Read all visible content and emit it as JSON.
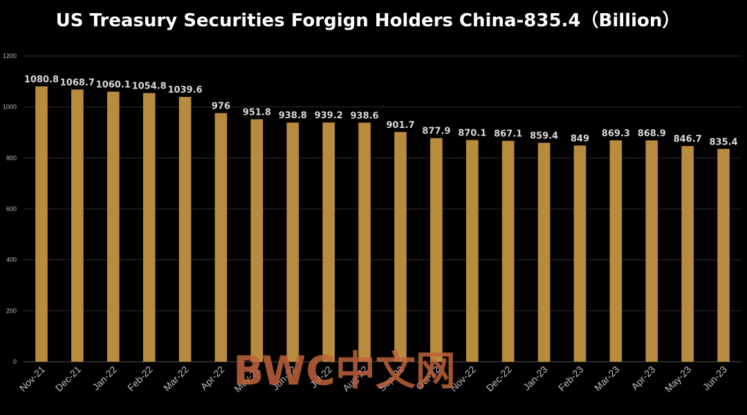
{
  "colors": {
    "background": "#000000",
    "bar": "#B98B3D",
    "grid": "#2E2E2E",
    "axis_text": "#BFBFBF",
    "data_label": "#D9D9D9",
    "title": "#FFFFFF",
    "watermark": "#C0623A"
  },
  "watermark": "BWC中文网",
  "chart_data": {
    "type": "bar",
    "title": "US Treasury Securities Forgign Holders China-835.4（Billion）",
    "xlabel": "",
    "ylabel": "",
    "ylim": [
      0,
      1200
    ],
    "yticks": [
      "0",
      "200",
      "400",
      "600",
      "800",
      "1000",
      "1200"
    ],
    "grid": true,
    "legend": "none",
    "categories": [
      "Nov-21",
      "Dec-21",
      "Jan-22",
      "Feb-22",
      "Mar-22",
      "Apr-22",
      "May-22",
      "Jun-22",
      "Jul-22",
      "Aug-22",
      "Sep-22",
      "Oct-22",
      "Nov-22",
      "Dec-22",
      "Jan-23",
      "Feb-23",
      "Mar-23",
      "Apr-23",
      "May-23",
      "Jun-23"
    ],
    "values": [
      1080.8,
      1068.7,
      1060.1,
      1054.8,
      1039.6,
      976,
      951.8,
      938.8,
      939.2,
      938.6,
      901.7,
      877.9,
      870.1,
      867.1,
      859.4,
      849,
      869.3,
      868.9,
      846.7,
      835.4
    ],
    "data_labels": [
      "1080.8",
      "1068.7",
      "1060.1",
      "1054.8",
      "1039.6",
      "976",
      "951.8",
      "938.8",
      "939.2",
      "938.6",
      "901.7",
      "877.9",
      "870.1",
      "867.1",
      "859.4",
      "849",
      "869.3",
      "868.9",
      "846.7",
      "835.4"
    ]
  }
}
